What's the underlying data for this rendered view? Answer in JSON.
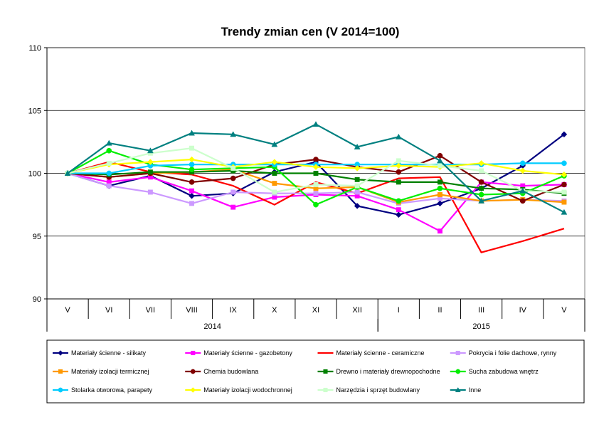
{
  "chart_data": {
    "type": "line",
    "title": "Trendy zmian cen (V 2014=100)",
    "categories": [
      "V",
      "VI",
      "VII",
      "VIII",
      "IX",
      "X",
      "XI",
      "XII",
      "I",
      "II",
      "III",
      "IV",
      "V"
    ],
    "year_groups": [
      {
        "label": "2014",
        "span": [
          0,
          7
        ]
      },
      {
        "label": "2015",
        "span": [
          8,
          12
        ]
      }
    ],
    "ylim": [
      90,
      110
    ],
    "yticks": [
      90,
      95,
      100,
      105,
      110
    ],
    "grid": true,
    "legend_position": "bottom",
    "series": [
      {
        "name": "Materiały ścienne - silikaty",
        "color": "#000080",
        "marker": "diamond",
        "values": [
          100,
          99.0,
          99.8,
          98.2,
          98.4,
          100.1,
          100.9,
          97.4,
          96.7,
          97.6,
          98.8,
          100.6,
          103.1
        ]
      },
      {
        "name": "Materiały ścienne - gazobetony",
        "color": "#ff00ff",
        "marker": "square",
        "values": [
          100,
          99.3,
          99.7,
          98.6,
          97.3,
          98.1,
          98.3,
          98.2,
          97.1,
          95.4,
          99.3,
          99.0,
          99.1
        ]
      },
      {
        "name": "Materiały ścienne - ceramiczne",
        "color": "#ff0000",
        "marker": "none",
        "values": [
          100,
          100.9,
          100.1,
          99.9,
          99.0,
          97.5,
          99.3,
          98.4,
          99.6,
          99.7,
          93.7,
          94.6,
          95.6
        ]
      },
      {
        "name": "Pokrycia i folie dachowe, rynny",
        "color": "#cc99ff",
        "marker": "square",
        "values": [
          100,
          99.0,
          98.5,
          97.6,
          98.5,
          98.4,
          98.4,
          98.5,
          97.6,
          98.0,
          97.8,
          97.9,
          97.8
        ]
      },
      {
        "name": "Materiały izolacji termicznej",
        "color": "#ff9900",
        "marker": "square",
        "values": [
          100,
          99.7,
          100.0,
          100.1,
          100.3,
          99.2,
          98.8,
          98.9,
          97.7,
          98.3,
          97.8,
          97.9,
          97.7
        ]
      },
      {
        "name": "Chemia budowlana",
        "color": "#800000",
        "marker": "circle",
        "values": [
          100,
          99.7,
          100.0,
          99.3,
          99.6,
          100.7,
          101.1,
          100.5,
          100.1,
          101.4,
          99.3,
          97.8,
          99.1
        ]
      },
      {
        "name": "Drewno i materiały drewnopochodne",
        "color": "#008000",
        "marker": "square",
        "values": [
          100,
          99.9,
          100.1,
          100.1,
          100.2,
          100.0,
          100.0,
          99.5,
          99.3,
          99.3,
          98.8,
          98.7,
          98.4
        ]
      },
      {
        "name": "Sucha zabudowa wnętrz",
        "color": "#00ee00",
        "marker": "circle",
        "values": [
          100,
          101.8,
          100.7,
          100.3,
          100.4,
          100.5,
          97.5,
          98.9,
          97.8,
          98.8,
          98.3,
          98.4,
          99.8
        ]
      },
      {
        "name": "Stolarka otworowa, parapety",
        "color": "#00ccff",
        "marker": "circle",
        "values": [
          100,
          100.0,
          100.6,
          100.7,
          100.7,
          100.7,
          100.7,
          100.7,
          100.7,
          100.7,
          100.7,
          100.8,
          100.8
        ]
      },
      {
        "name": "Materiały izolacji wodochronnej",
        "color": "#ffff00",
        "marker": "diamond",
        "values": [
          100,
          100.7,
          100.9,
          101.1,
          100.5,
          100.9,
          100.5,
          100.4,
          100.6,
          100.5,
          100.8,
          100.2,
          99.9
        ]
      },
      {
        "name": "Narzędzia i sprzęt budowlany",
        "color": "#ccffcc",
        "marker": "square",
        "values": [
          100,
          100.8,
          101.6,
          102.0,
          100.4,
          98.5,
          99.1,
          99.0,
          101.0,
          100.6,
          100.2,
          98.6,
          98.5
        ]
      },
      {
        "name": "Inne",
        "color": "#008080",
        "marker": "triangle",
        "values": [
          100,
          102.4,
          101.8,
          103.2,
          103.1,
          102.3,
          103.9,
          102.1,
          102.9,
          101.0,
          97.8,
          98.6,
          96.9
        ]
      }
    ]
  }
}
